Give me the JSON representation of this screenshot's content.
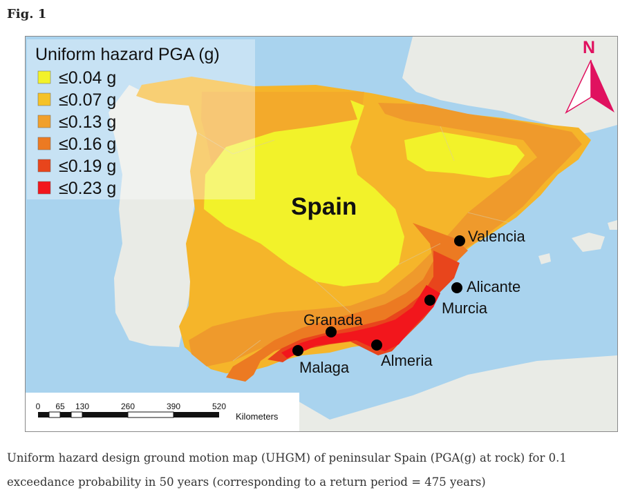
{
  "figure": {
    "label": "Fig. 1"
  },
  "legend": {
    "title": "Uniform hazard PGA (g)",
    "classes": [
      {
        "label": "≤0.04 g",
        "color": "#f2f22a"
      },
      {
        "label": "≤0.07 g",
        "color": "#f5c227"
      },
      {
        "label": "≤0.13 g",
        "color": "#f0a02c"
      },
      {
        "label": "≤0.16 g",
        "color": "#ec7a22"
      },
      {
        "label": "≤0.19 g",
        "color": "#e8451c"
      },
      {
        "label": "≤0.23 g",
        "color": "#f2161c"
      }
    ]
  },
  "map": {
    "country_label": "Spain",
    "north_label": "N",
    "cities": [
      "Valencia",
      "Alicante",
      "Murcia",
      "Granada",
      "Almeria",
      "Malaga"
    ]
  },
  "scalebar": {
    "ticks": [
      "0",
      "65",
      "130",
      "260",
      "390",
      "520"
    ],
    "unit": "Kilometers"
  },
  "caption": "Uniform hazard design ground motion map (UHGM) of peninsular Spain (PGA(g) at rock) for 0.1 exceedance probability in 50 years (corresponding to a return period = 475 years)"
}
